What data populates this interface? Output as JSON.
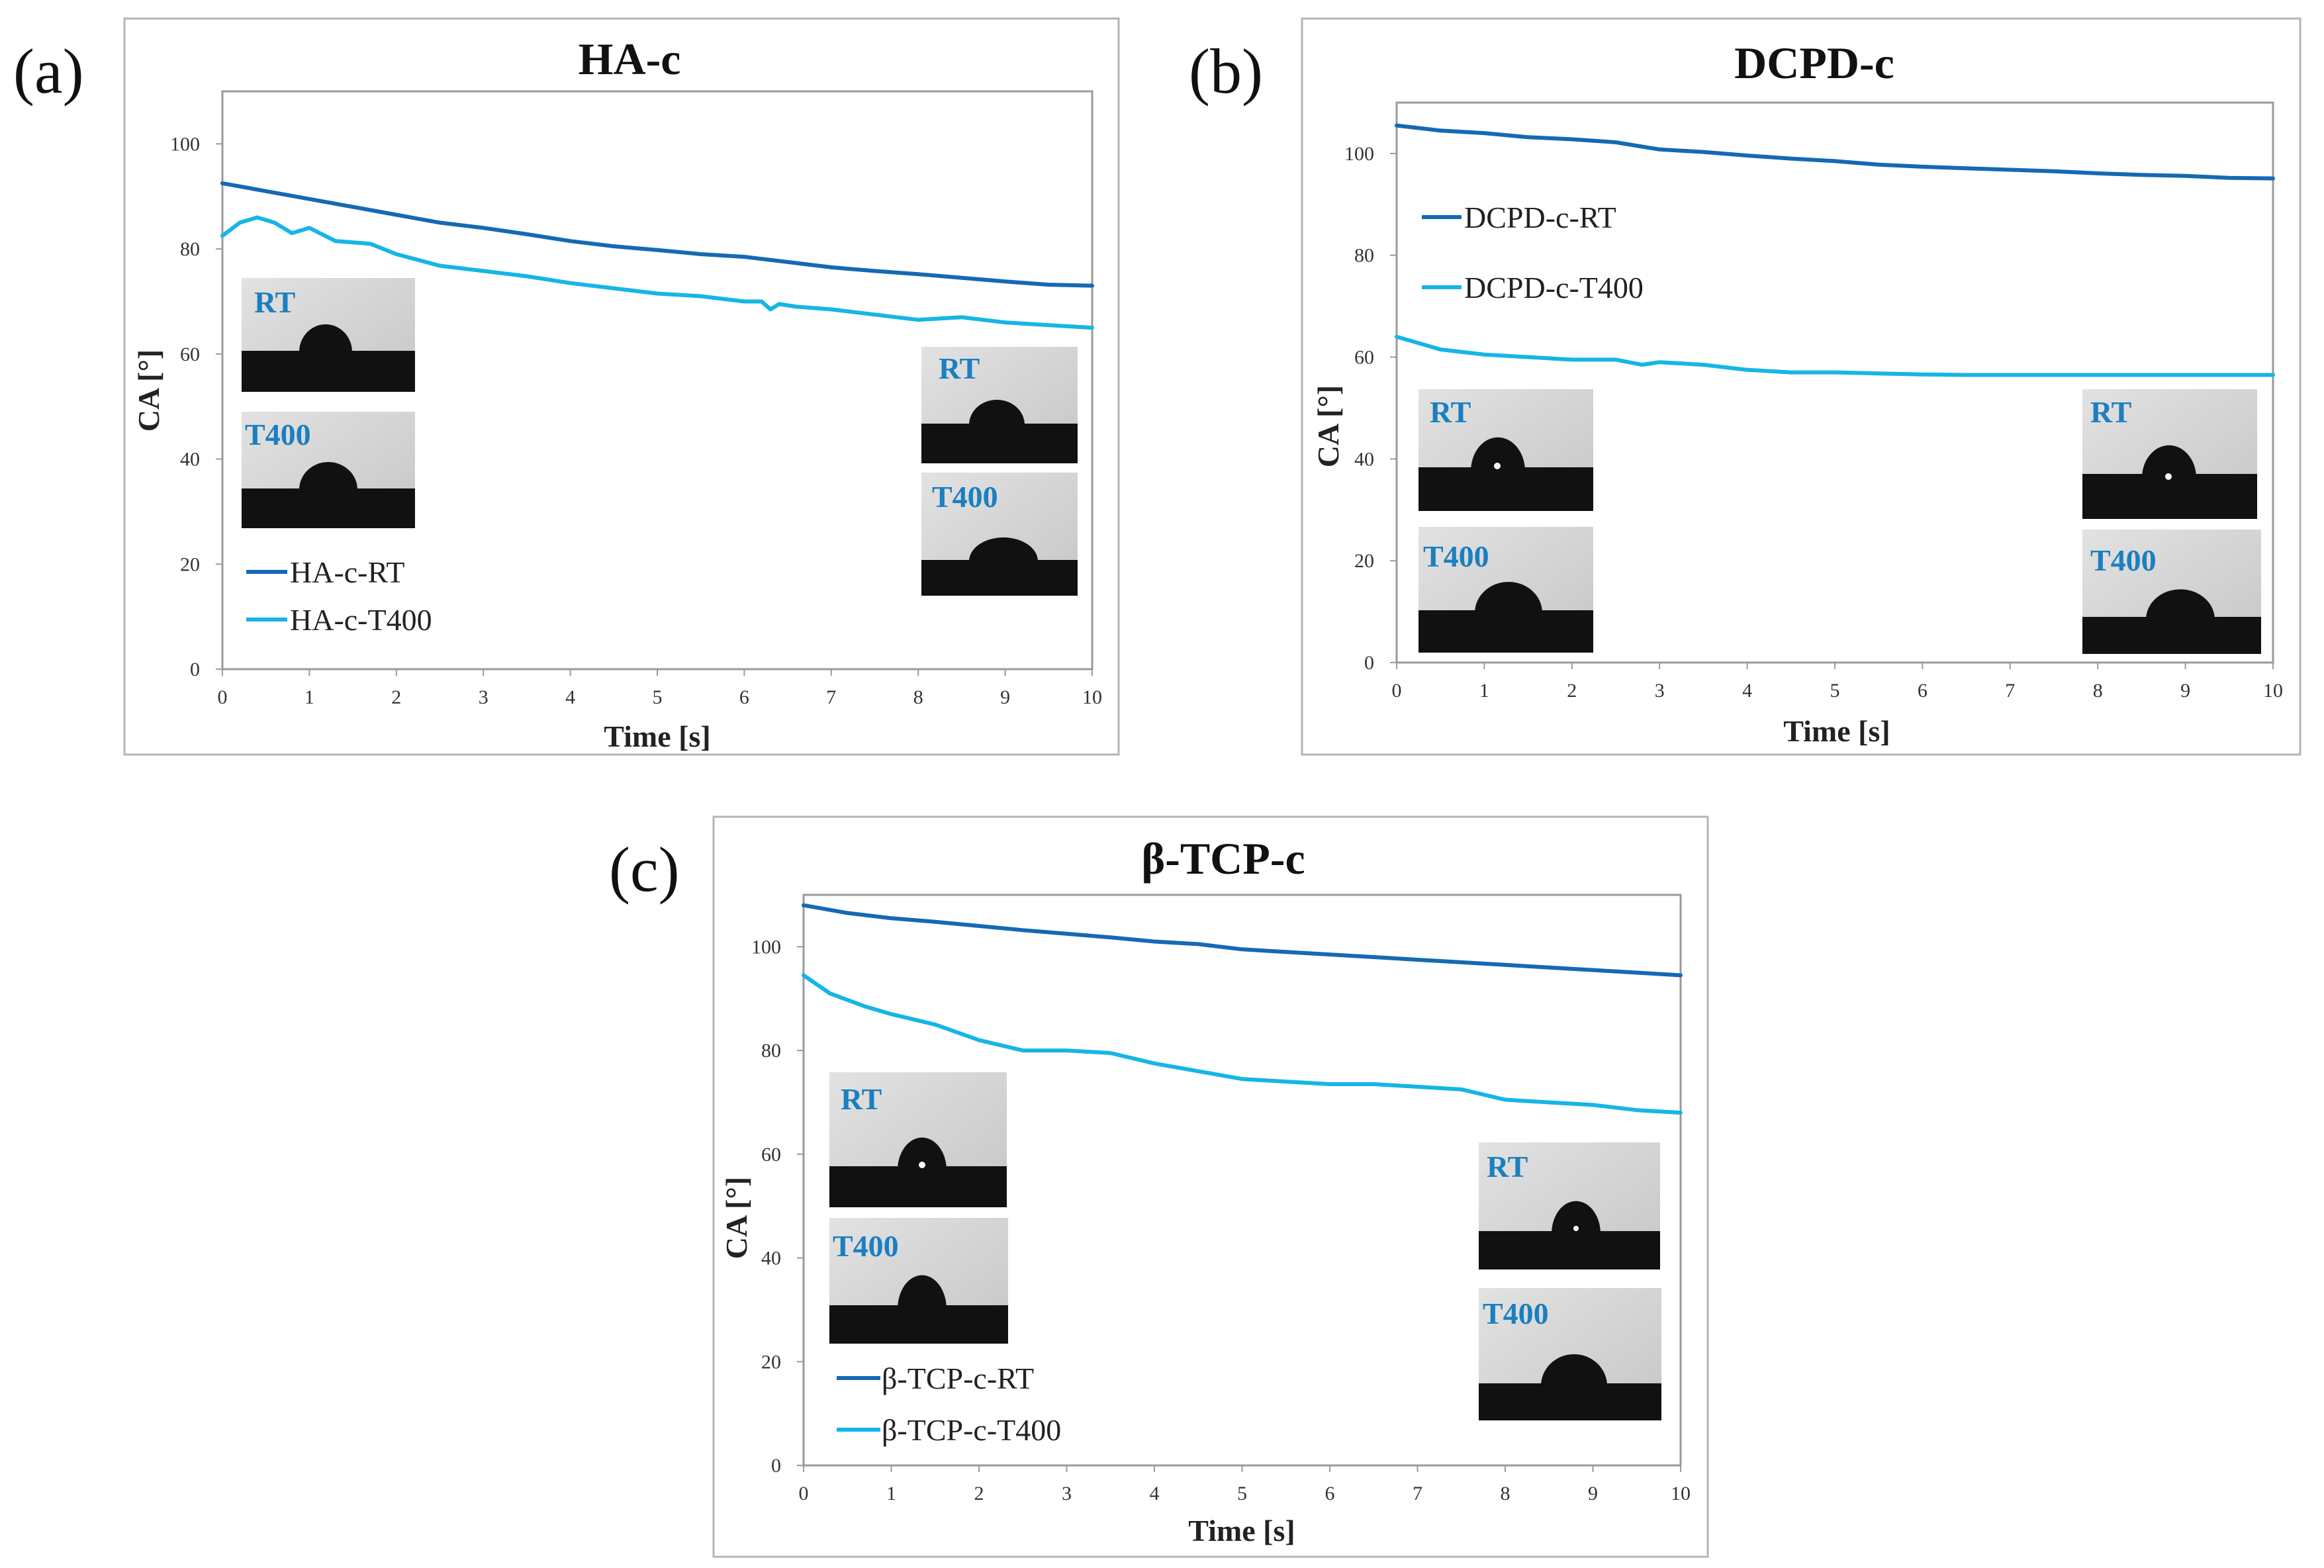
{
  "colors": {
    "rt": "#1469b4",
    "t400": "#16b5e6",
    "inset_label": "#1b7fc0"
  },
  "chart_data": [
    {
      "type": "line",
      "panel": "(a)",
      "title": "HA-c",
      "xlabel": "Time [s]",
      "ylabel": "CA [°]",
      "xlim": [
        0,
        10
      ],
      "ylim": [
        0,
        110
      ],
      "xticks": [
        "0",
        "1",
        "2",
        "3",
        "4",
        "5",
        "6",
        "7",
        "8",
        "9",
        "10"
      ],
      "yticks": [
        "0",
        "20",
        "40",
        "60",
        "80",
        "100"
      ],
      "legend_position": "bottom-left",
      "inset_labels": [
        "RT",
        "T400",
        "RT",
        "T400"
      ],
      "series": [
        {
          "name": "HA-c-RT",
          "color_key": "rt",
          "x": [
            0,
            0.5,
            1,
            1.5,
            2,
            2.5,
            3,
            3.5,
            4,
            4.5,
            5,
            5.5,
            6,
            6.5,
            7,
            7.5,
            8,
            8.5,
            9,
            9.5,
            10
          ],
          "y": [
            92.5,
            91,
            89.5,
            88,
            86.5,
            85,
            84,
            82.8,
            81.5,
            80.5,
            79.8,
            79,
            78.5,
            77.5,
            76.5,
            75.8,
            75.2,
            74.5,
            73.8,
            73.2,
            73
          ]
        },
        {
          "name": "HA-c-T400",
          "color_key": "t400",
          "x": [
            0,
            0.2,
            0.4,
            0.6,
            0.8,
            1,
            1.3,
            1.7,
            2,
            2.5,
            3,
            3.5,
            4,
            4.5,
            5,
            5.5,
            6,
            6.2,
            6.3,
            6.4,
            6.6,
            7,
            7.5,
            8,
            8.5,
            9,
            9.5,
            10
          ],
          "y": [
            82.5,
            85,
            86,
            85,
            83,
            84,
            81.5,
            81,
            79,
            76.8,
            75.8,
            74.8,
            73.5,
            72.5,
            71.5,
            71,
            70,
            70,
            68.5,
            69.5,
            69,
            68.5,
            67.5,
            66.5,
            67,
            66,
            65.5,
            65
          ]
        }
      ]
    },
    {
      "type": "line",
      "panel": "(b)",
      "title": "DCPD-c",
      "xlabel": "Time [s]",
      "ylabel": "CA [°]",
      "xlim": [
        0,
        10
      ],
      "ylim": [
        0,
        110
      ],
      "xticks": [
        "0",
        "1",
        "2",
        "3",
        "4",
        "5",
        "6",
        "7",
        "8",
        "9",
        "10"
      ],
      "yticks": [
        "0",
        "20",
        "40",
        "60",
        "80",
        "100"
      ],
      "legend_position": "top-left",
      "inset_labels": [
        "RT",
        "T400",
        "RT",
        "T400"
      ],
      "series": [
        {
          "name": "DCPD-c-RT",
          "color_key": "rt",
          "x": [
            0,
            0.5,
            1,
            1.5,
            2,
            2.5,
            3,
            3.5,
            4,
            4.5,
            5,
            5.5,
            6,
            6.5,
            7,
            7.5,
            8,
            8.5,
            9,
            9.5,
            10
          ],
          "y": [
            105.5,
            104.5,
            104,
            103.2,
            102.8,
            102.2,
            100.8,
            100.3,
            99.6,
            99,
            98.5,
            97.8,
            97.4,
            97.1,
            96.8,
            96.5,
            96.1,
            95.8,
            95.6,
            95.2,
            95.1
          ]
        },
        {
          "name": "DCPD-c-T400",
          "color_key": "t400",
          "x": [
            0,
            0.5,
            1,
            1.5,
            2,
            2.5,
            2.8,
            3,
            3.5,
            4,
            4.5,
            5,
            5.5,
            6,
            6.5,
            7,
            7.5,
            8,
            8.5,
            9,
            9.5,
            10
          ],
          "y": [
            64,
            61.5,
            60.5,
            60,
            59.5,
            59.5,
            58.5,
            59,
            58.5,
            57.5,
            57,
            57,
            56.8,
            56.6,
            56.5,
            56.5,
            56.5,
            56.5,
            56.5,
            56.5,
            56.5,
            56.5
          ]
        }
      ]
    },
    {
      "type": "line",
      "panel": "(c)",
      "title": "β-TCP-c",
      "xlabel": "Time [s]",
      "ylabel": "CA [°]",
      "xlim": [
        0,
        10
      ],
      "ylim": [
        0,
        110
      ],
      "xticks": [
        "0",
        "1",
        "2",
        "3",
        "4",
        "5",
        "6",
        "7",
        "8",
        "9",
        "10"
      ],
      "yticks": [
        "0",
        "20",
        "40",
        "60",
        "80",
        "100"
      ],
      "legend_position": "bottom-left",
      "inset_labels": [
        "RT",
        "T400",
        "RT",
        "T400"
      ],
      "series": [
        {
          "name": "β-TCP-c-RT",
          "color_key": "rt",
          "x": [
            0,
            0.5,
            1,
            1.5,
            2,
            2.5,
            3,
            3.5,
            4,
            4.5,
            5,
            5.5,
            6,
            6.5,
            7,
            7.5,
            8,
            8.5,
            9,
            9.5,
            10
          ],
          "y": [
            108,
            106.5,
            105.5,
            104.8,
            104,
            103.2,
            102.5,
            101.8,
            101,
            100.5,
            99.5,
            99,
            98.5,
            98,
            97.5,
            97,
            96.5,
            96,
            95.5,
            95,
            94.5
          ]
        },
        {
          "name": "β-TCP-c-T400",
          "color_key": "t400",
          "x": [
            0,
            0.3,
            0.7,
            1,
            1.5,
            2,
            2.5,
            3,
            3.5,
            4,
            4.5,
            5,
            5.5,
            6,
            6.5,
            7,
            7.5,
            8,
            8.5,
            9,
            9.5,
            10
          ],
          "y": [
            94.5,
            91,
            88.5,
            87,
            85,
            82,
            80,
            80,
            79.5,
            77.5,
            76,
            74.5,
            74,
            73.5,
            73.5,
            73,
            72.5,
            70.5,
            70,
            69.5,
            68.5,
            68
          ]
        }
      ]
    }
  ]
}
